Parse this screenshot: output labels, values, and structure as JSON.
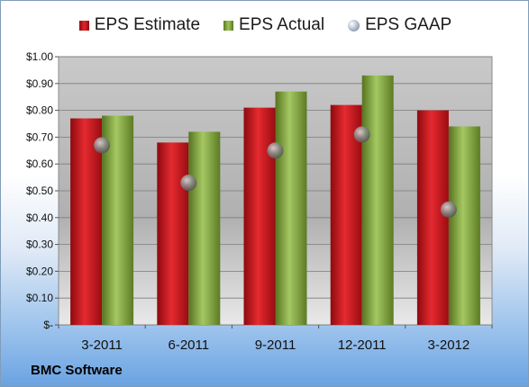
{
  "legend": {
    "estimate": "EPS Estimate",
    "actual": "EPS Actual",
    "gaap": "EPS GAAP"
  },
  "brand": "BMC Software",
  "colors": {
    "estimate": "#d0191f",
    "actual": "#8cb14b",
    "gaap": "#a9b6c5"
  },
  "chart_data": {
    "type": "bar",
    "categories": [
      "3-2011",
      "6-2011",
      "9-2011",
      "12-2011",
      "3-2012"
    ],
    "series": [
      {
        "name": "EPS Estimate",
        "type": "bar",
        "values": [
          0.77,
          0.68,
          0.81,
          0.82,
          0.8
        ]
      },
      {
        "name": "EPS Actual",
        "type": "bar",
        "values": [
          0.78,
          0.72,
          0.87,
          0.93,
          0.74
        ]
      },
      {
        "name": "EPS GAAP",
        "type": "scatter",
        "values": [
          0.67,
          0.53,
          0.65,
          0.71,
          0.43
        ]
      }
    ],
    "ylim": [
      0,
      1.0
    ],
    "y_ticks": [
      "$1.00",
      "$0.90",
      "$0.80",
      "$0.70",
      "$0.60",
      "$0.50",
      "$0.40",
      "$0.30",
      "$0.20",
      "$0.10",
      "$-"
    ],
    "grid": true,
    "legend_position": "top"
  }
}
